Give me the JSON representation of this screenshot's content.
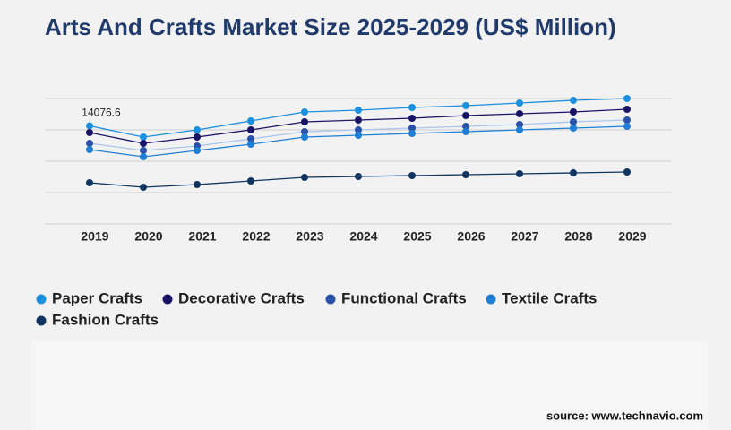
{
  "chart_data": {
    "type": "line",
    "title": "Arts And Crafts Market Size 2025-2029 (US$ Million)",
    "categories": [
      "2019",
      "2020",
      "2021",
      "2022",
      "2023",
      "2024",
      "2025",
      "2026",
      "2027",
      "2028",
      "2029"
    ],
    "series": [
      {
        "name": "Paper Crafts",
        "color": "#1b8fe0",
        "line_color": "#1b8fe0",
        "values": [
          14076.6,
          12471,
          13500,
          14786,
          16071,
          16329,
          16714,
          16971,
          17357,
          17743,
          18000
        ]
      },
      {
        "name": "Decorative Crafts",
        "color": "#1a1466",
        "line_color": "#1a1466",
        "values": [
          13114,
          11571,
          12471,
          13500,
          14657,
          14914,
          15171,
          15557,
          15814,
          16071,
          16457
        ]
      },
      {
        "name": "Functional Crafts",
        "color": "#2a52a8",
        "line_color": "#a9c4ee",
        "values": [
          11571,
          10543,
          11186,
          12214,
          13243,
          13500,
          13757,
          14014,
          14271,
          14657,
          14914
        ]
      },
      {
        "name": "Textile Crafts",
        "color": "#1e7fd6",
        "line_color": "#1e7fd6",
        "values": [
          10671,
          9643,
          10543,
          11443,
          12471,
          12729,
          12986,
          13243,
          13500,
          13757,
          14014
        ]
      },
      {
        "name": "Fashion Crafts",
        "color": "#0f3560",
        "line_color": "#0f3560",
        "values": [
          5914,
          5271,
          5657,
          6171,
          6686,
          6814,
          6943,
          7071,
          7200,
          7329,
          7457
        ]
      }
    ],
    "data_label": {
      "series": 0,
      "index": 0
    },
    "ylim": [
      0,
      18000
    ],
    "yticks": [
      0,
      4500,
      9000,
      13500,
      18000
    ],
    "ytick_labels": false,
    "grid": true,
    "legend": "bottom",
    "source": "source: www.technavio.com"
  }
}
